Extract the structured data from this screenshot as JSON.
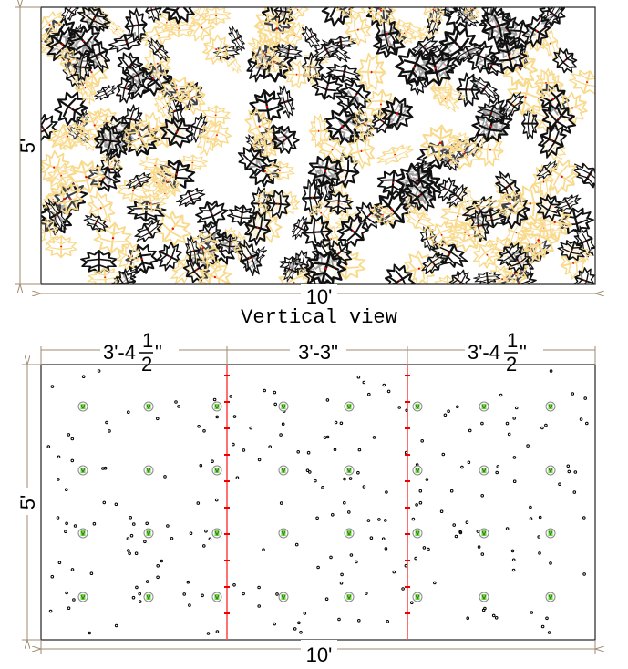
{
  "top_view": {
    "height_label": "5'",
    "width_label": "10'",
    "caption": "Vertical view"
  },
  "plan_view": {
    "height_label": "5'",
    "width_label": "10'",
    "sections": [
      {
        "whole": "3'-4",
        "num": "1",
        "den": "2",
        "suffix": "\""
      },
      {
        "whole": "3'-3\"",
        "num": "",
        "den": "",
        "suffix": ""
      },
      {
        "whole": "3'-4",
        "num": "1",
        "den": "2",
        "suffix": "\""
      }
    ]
  },
  "colors": {
    "dim_line": "#a08a70",
    "leaf_gold": "#f9d98a",
    "leaf_black": "#111111",
    "divider": "#ff4d4d",
    "plant": "#66dd33"
  }
}
